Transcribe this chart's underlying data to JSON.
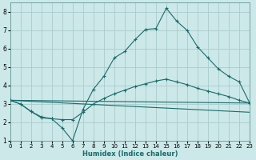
{
  "title": "",
  "xlabel": "Humidex (Indice chaleur)",
  "bg_color": "#cce8e8",
  "grid_color": "#aacccc",
  "line_color": "#1a6b6b",
  "xlim": [
    0,
    23
  ],
  "ylim": [
    1,
    8.5
  ],
  "xticks": [
    0,
    1,
    2,
    3,
    4,
    5,
    6,
    7,
    8,
    9,
    10,
    11,
    12,
    13,
    14,
    15,
    16,
    17,
    18,
    19,
    20,
    21,
    22,
    23
  ],
  "yticks": [
    1,
    2,
    3,
    4,
    5,
    6,
    7,
    8
  ],
  "line1_x": [
    0,
    1,
    2,
    3,
    4,
    5,
    6,
    7,
    8,
    9,
    10,
    11,
    12,
    13,
    14,
    15,
    16,
    17,
    18,
    19,
    20,
    21,
    22,
    23
  ],
  "line1_y": [
    3.2,
    3.0,
    2.6,
    2.3,
    2.2,
    1.7,
    1.0,
    2.7,
    3.8,
    4.5,
    5.5,
    5.85,
    6.5,
    7.05,
    7.1,
    8.2,
    7.5,
    7.0,
    6.1,
    5.5,
    4.9,
    4.5,
    4.2,
    3.05
  ],
  "line2_x": [
    0,
    1,
    2,
    3,
    4,
    5,
    6,
    7,
    8,
    9,
    10,
    11,
    12,
    13,
    14,
    15,
    16,
    17,
    18,
    19,
    20,
    21,
    22,
    23
  ],
  "line2_y": [
    3.2,
    3.0,
    2.6,
    2.25,
    2.2,
    2.15,
    2.15,
    2.55,
    3.0,
    3.3,
    3.55,
    3.75,
    3.95,
    4.1,
    4.25,
    4.35,
    4.2,
    4.05,
    3.85,
    3.7,
    3.55,
    3.4,
    3.2,
    3.05
  ],
  "line3_x": [
    0,
    23
  ],
  "line3_y": [
    3.2,
    3.05
  ],
  "line4_x": [
    0,
    23
  ],
  "line4_y": [
    3.2,
    2.55
  ]
}
